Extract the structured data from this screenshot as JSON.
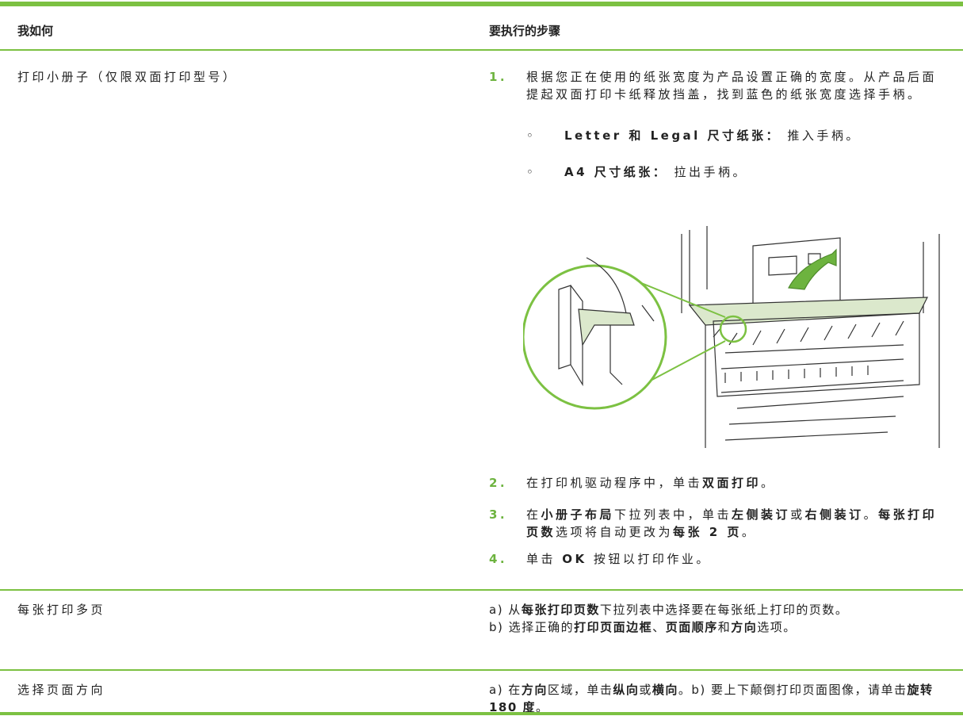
{
  "header": [
    "我如何",
    "要执行的步骤"
  ],
  "rows": [
    {
      "task": "打印小册子（仅限双面打印型号）",
      "steps": [
        {
          "number": "1.",
          "runs": [
            {
              "t": "根据您正在使用的纸张宽度为产品设置正确的宽度。从产品后面提起双面打印卡纸释放挡盖，找到蓝色的纸张宽度选择手柄。"
            }
          ],
          "bullets": [
            {
              "marker": "◦",
              "runs": [
                {
                  "b": "Letter 和 Legal 尺寸纸张："
                },
                {
                  "t": " 推入手柄。"
                }
              ]
            },
            {
              "marker": "◦",
              "runs": [
                {
                  "b": "A4 尺寸纸张："
                },
                {
                  "t": " 拉出手柄。"
                }
              ]
            }
          ]
        },
        {
          "number": "2.",
          "runs": [
            {
              "t": "在打印机驱动程序中，单击"
            },
            {
              "b": "双面打印"
            },
            {
              "t": "。"
            }
          ]
        },
        {
          "number": "3.",
          "runs": [
            {
              "t": "在"
            },
            {
              "b": "小册子布局"
            },
            {
              "t": "下拉列表中，单击"
            },
            {
              "b": "左侧装订"
            },
            {
              "t": "或"
            },
            {
              "b": "右侧装订"
            },
            {
              "t": "。"
            },
            {
              "b": "每张打印页数"
            },
            {
              "t": "选项将自动更改为"
            },
            {
              "b": "每张 2 页"
            },
            {
              "t": "。"
            }
          ]
        },
        {
          "number": "4.",
          "runs": [
            {
              "t": "单击 "
            },
            {
              "b": "OK"
            },
            {
              "t": " 按钮以打印作业。"
            }
          ]
        }
      ]
    },
    {
      "task": "每张打印多页",
      "lines": [
        [
          {
            "t": "a) 从"
          },
          {
            "b": "每张打印页数"
          },
          {
            "t": "下拉列表中选择要在每张纸上打印的页数。"
          }
        ],
        [
          {
            "t": "b) 选择正确的"
          },
          {
            "b": "打印页面边框"
          },
          {
            "t": "、"
          },
          {
            "b": "页面顺序"
          },
          {
            "t": "和"
          },
          {
            "b": "方向"
          },
          {
            "t": "选项。"
          }
        ]
      ]
    },
    {
      "task": "选择页面方向",
      "lines": [
        [
          {
            "t": "a) 在"
          },
          {
            "b": "方向"
          },
          {
            "t": "区域，单击"
          },
          {
            "b": "纵向"
          },
          {
            "t": "或"
          },
          {
            "b": "横向"
          },
          {
            "t": "。b) 要上下颠倒打印页面图像，请单击"
          },
          {
            "b": "旋转 180 度"
          },
          {
            "t": "。"
          }
        ]
      ]
    }
  ]
}
